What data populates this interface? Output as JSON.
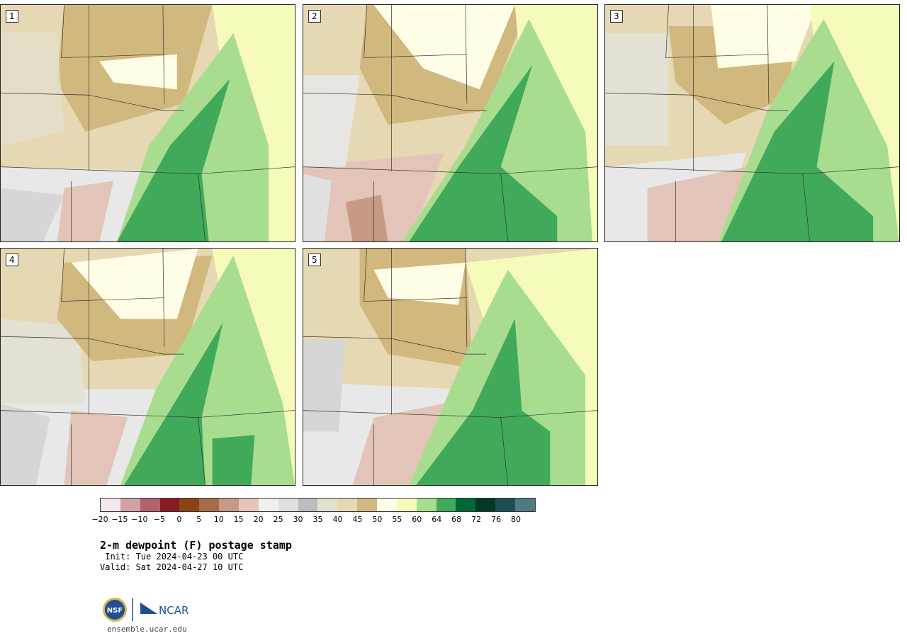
{
  "panels": [
    {
      "label": "1"
    },
    {
      "label": "2"
    },
    {
      "label": "3"
    },
    {
      "label": "4"
    },
    {
      "label": "5"
    }
  ],
  "colorbar": {
    "colors": [
      "#f3e9ea",
      "#d4a0a6",
      "#b5616a",
      "#8a1a23",
      "#8a4512",
      "#a86b4a",
      "#c79a85",
      "#e2c5b8",
      "#f0f0f0",
      "#e0e0e0",
      "#bcbcbc",
      "#e3e1d3",
      "#e6d8b2",
      "#d1b87e",
      "#fffde6",
      "#f6fbba",
      "#a8dd8f",
      "#41a95a",
      "#006837",
      "#013a22",
      "#1b4f56",
      "#4f7b80"
    ],
    "tick_labels": [
      "−20",
      "−15",
      "−10",
      "−5",
      "0",
      "5",
      "10",
      "15",
      "20",
      "25",
      "30",
      "35",
      "40",
      "45",
      "50",
      "55",
      "60",
      "64",
      "68",
      "72",
      "76",
      "80"
    ]
  },
  "title": "2-m dewpoint (F) postage stamp",
  "init": " Init: Tue 2024-04-23 00 UTC",
  "valid": "Valid: Sat 2024-04-27 10 UTC",
  "logos": {
    "nsf": "NSF",
    "ncar": "NCAR"
  },
  "url": "ensemble.ucar.edu"
}
